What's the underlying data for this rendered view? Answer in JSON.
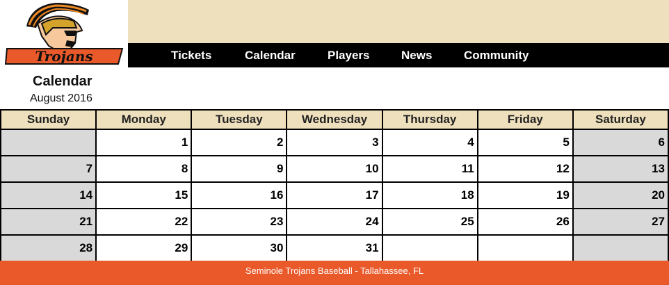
{
  "logo": {
    "text": "Trojans",
    "icon": "trojan-helmet-icon"
  },
  "nav": [
    {
      "label": "Tickets"
    },
    {
      "label": "Calendar"
    },
    {
      "label": "Players"
    },
    {
      "label": "News"
    },
    {
      "label": "Community"
    }
  ],
  "page": {
    "title": "Calendar",
    "subtitle": "August 2016"
  },
  "calendar": {
    "days": [
      "Sunday",
      "Monday",
      "Tuesday",
      "Wednesday",
      "Thursday",
      "Friday",
      "Saturday"
    ],
    "weeks": [
      [
        "",
        "1",
        "2",
        "3",
        "4",
        "5",
        "6"
      ],
      [
        "7",
        "8",
        "9",
        "10",
        "11",
        "12",
        "13"
      ],
      [
        "14",
        "15",
        "16",
        "17",
        "18",
        "19",
        "20"
      ],
      [
        "21",
        "22",
        "23",
        "24",
        "25",
        "26",
        "27"
      ],
      [
        "28",
        "29",
        "30",
        "31",
        "",
        "",
        ""
      ]
    ]
  },
  "footer": {
    "text": "Seminole Trojans Baseball - Tallahassee, FL"
  },
  "colors": {
    "accent": "#e9592a",
    "banner": "#efe0bd",
    "nav": "#000000",
    "weekend": "#d9d9d9"
  }
}
